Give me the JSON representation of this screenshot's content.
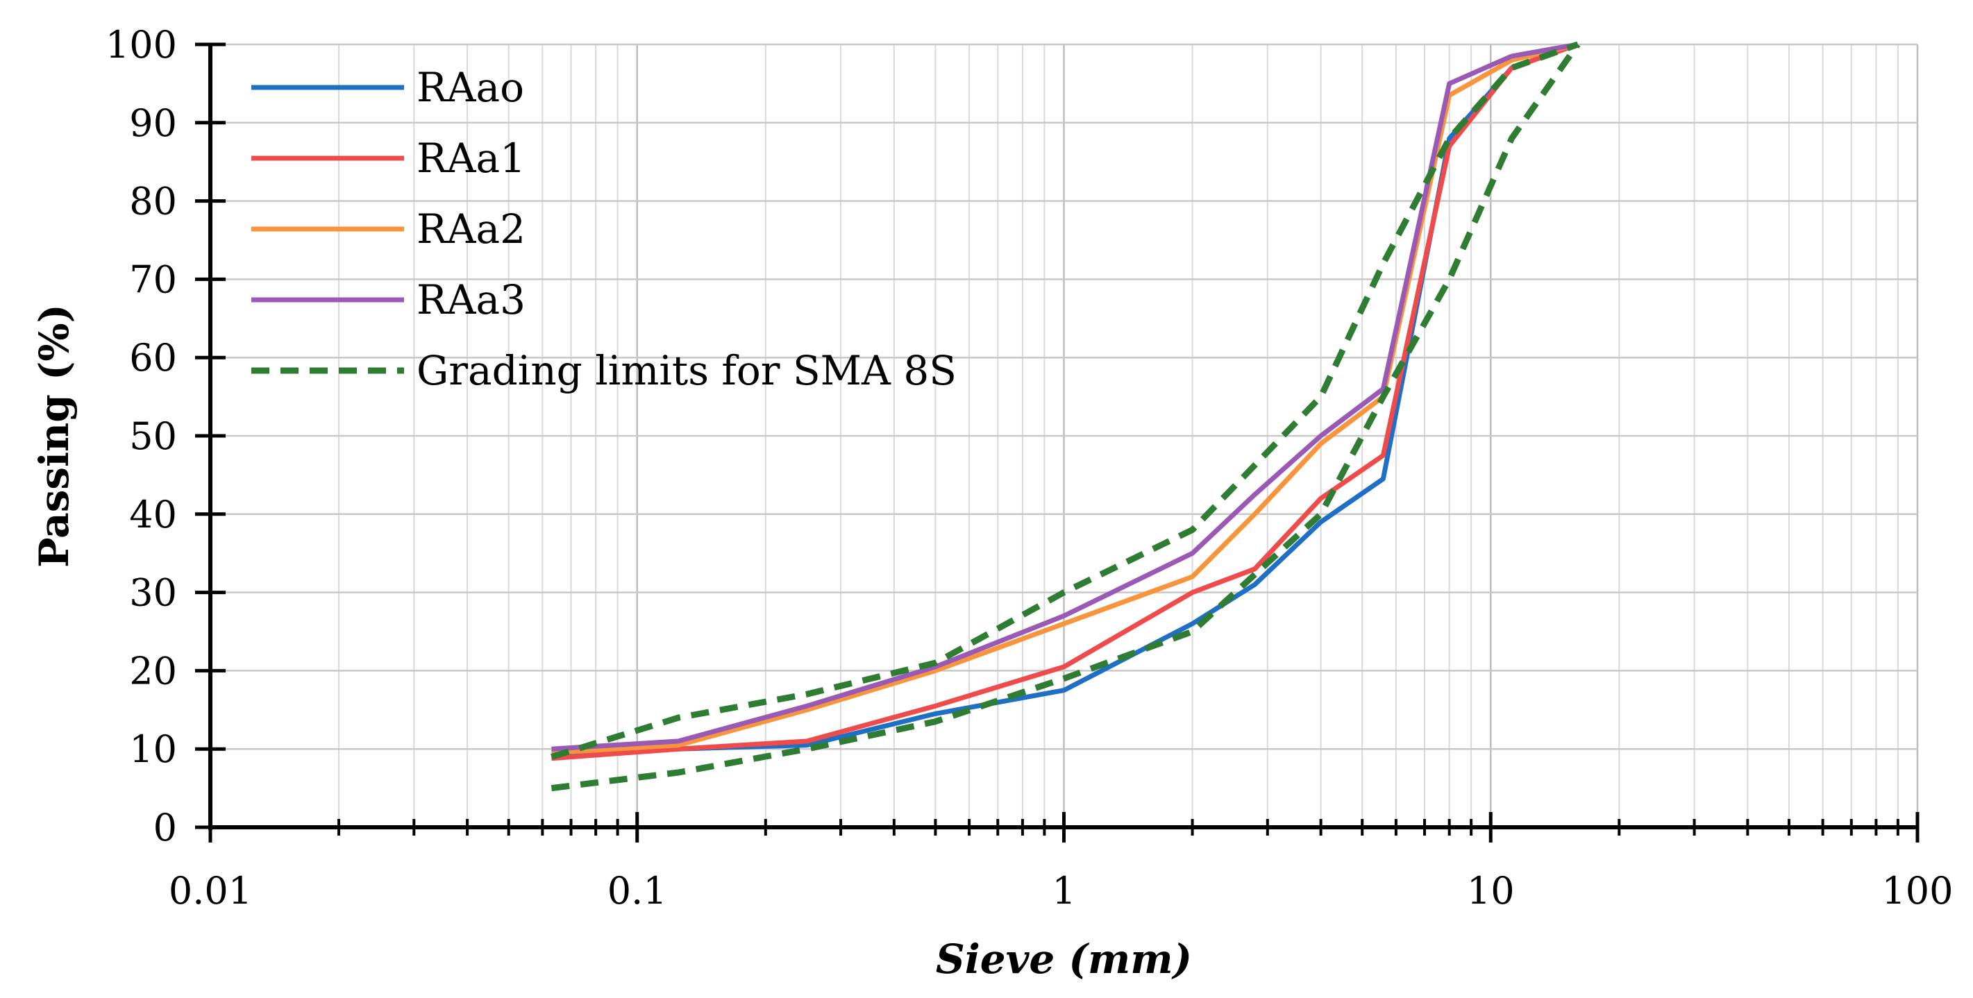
{
  "chart_data": {
    "type": "line",
    "title": "",
    "xlabel": "Sieve (mm)",
    "ylabel": "Passing (%)",
    "xscale": "log",
    "xlim": [
      0.01,
      100
    ],
    "ylim": [
      0,
      100
    ],
    "x_ticks": [
      0.01,
      0.1,
      1,
      10,
      100
    ],
    "x_tick_labels": [
      "0.01",
      "0.1",
      "1",
      "10",
      "100"
    ],
    "y_ticks": [
      0,
      10,
      20,
      30,
      40,
      50,
      60,
      70,
      80,
      90,
      100
    ],
    "y_tick_labels": [
      "0",
      "10",
      "20",
      "30",
      "40",
      "50",
      "60",
      "70",
      "80",
      "90",
      "100"
    ],
    "grid": true,
    "legend_position": "top-left",
    "series": [
      {
        "name": "RAao",
        "color": "#1f6fc5",
        "dash": "solid",
        "x": [
          0.063,
          0.125,
          0.25,
          0.5,
          1,
          2,
          2.8,
          4,
          5.6,
          8,
          11.2,
          16
        ],
        "y": [
          9,
          10,
          10.5,
          14.5,
          17.5,
          26,
          31,
          39,
          44.5,
          88,
          97,
          100
        ]
      },
      {
        "name": "RAa1",
        "color": "#f04b4b",
        "dash": "solid",
        "x": [
          0.063,
          0.125,
          0.25,
          0.5,
          1,
          2,
          2.8,
          4,
          5.6,
          8,
          11.2,
          16
        ],
        "y": [
          8.8,
          10,
          11,
          15.5,
          20.5,
          30,
          33,
          42,
          47.5,
          87,
          97,
          100
        ]
      },
      {
        "name": "RAa2",
        "color": "#f7943c",
        "dash": "solid",
        "x": [
          0.063,
          0.125,
          0.25,
          0.5,
          1,
          2,
          2.8,
          4,
          5.6,
          8,
          11.2,
          16
        ],
        "y": [
          9.5,
          10.5,
          15,
          20,
          26,
          32,
          40,
          49,
          55,
          93.5,
          98,
          100
        ]
      },
      {
        "name": "RAa3",
        "color": "#9b59b6",
        "dash": "solid",
        "x": [
          0.063,
          0.125,
          0.25,
          0.5,
          1,
          2,
          2.8,
          4,
          5.6,
          8,
          11.2,
          16
        ],
        "y": [
          10,
          11,
          15.5,
          20.5,
          27,
          35,
          42.5,
          50,
          56,
          95,
          98.5,
          100
        ]
      },
      {
        "name": "Grading limits for SMA 8S",
        "color": "#2e7d32",
        "dash": "dashed",
        "x": [
          0.063,
          0.125,
          0.25,
          0.5,
          1,
          2,
          4,
          5.6,
          8,
          11.2,
          16
        ],
        "y": [
          9,
          14,
          17,
          21,
          30,
          38,
          55,
          72,
          88,
          97,
          100
        ]
      },
      {
        "name": "",
        "color": "#2e7d32",
        "dash": "dashed",
        "legend": false,
        "x": [
          0.063,
          0.125,
          0.25,
          0.5,
          1,
          2,
          4,
          5.6,
          8,
          11.2,
          16
        ],
        "y": [
          5,
          7,
          10,
          13.5,
          19,
          25,
          40,
          55,
          70,
          88,
          100
        ]
      }
    ]
  }
}
